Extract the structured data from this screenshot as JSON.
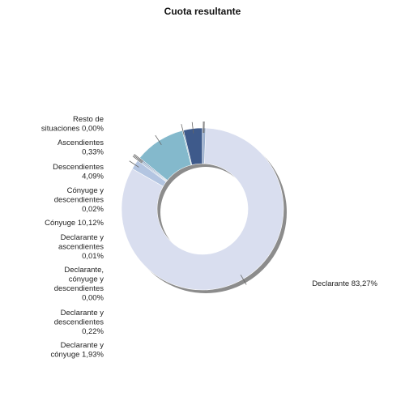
{
  "chart_data": {
    "type": "pie",
    "title": "Cuota resultante",
    "hole": "donut",
    "slices": [
      {
        "label_lines": [
          "Declarante 83,27%"
        ],
        "name": "Declarante",
        "value": 83.27,
        "color": "#d9deef"
      },
      {
        "label_lines": [
          "Declarante y",
          "cónyuge 1,93%"
        ],
        "name": "Declarante y cónyuge",
        "value": 1.93,
        "color": "#b3c5e1"
      },
      {
        "label_lines": [
          "Declarante y",
          "descendientes",
          "0,22%"
        ],
        "name": "Declarante y descendientes",
        "value": 0.22,
        "color": "#8aa6c8"
      },
      {
        "label_lines": [
          "Declarante,",
          "cónyuge y",
          "descendientes",
          "0,00%"
        ],
        "name": "Declarante, cónyuge y descendientes",
        "value": 0.0,
        "color": "#6f8fb6"
      },
      {
        "label_lines": [
          "Declarante y",
          "ascendientes",
          "0,01%"
        ],
        "name": "Declarante y ascendientes",
        "value": 0.01,
        "color": "#5a7aa5"
      },
      {
        "label_lines": [
          "Cónyuge 10,12%"
        ],
        "name": "Cónyuge",
        "value": 10.12,
        "color": "#84b9cc"
      },
      {
        "label_lines": [
          "Cónyuge y",
          "descendientes",
          "0,02%"
        ],
        "name": "Cónyuge y descendientes",
        "value": 0.02,
        "color": "#7aaac0"
      },
      {
        "label_lines": [
          "Descendientes",
          "4,09%"
        ],
        "name": "Descendientes",
        "value": 4.09,
        "color": "#3e5a8b"
      },
      {
        "label_lines": [
          "Ascendientes",
          "0,33%"
        ],
        "name": "Ascendientes",
        "value": 0.33,
        "color": "#7a96be"
      },
      {
        "label_lines": [
          "Resto de",
          "situaciones 0,00%"
        ],
        "name": "Resto de situaciones",
        "value": 0.0,
        "color": "#9aaecc"
      }
    ]
  }
}
